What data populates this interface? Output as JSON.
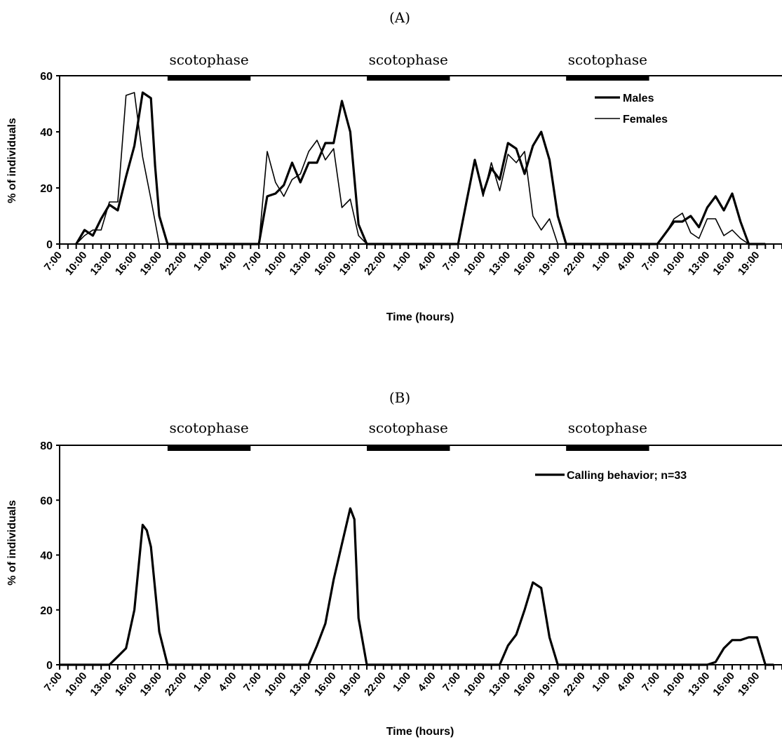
{
  "chart_data": [
    {
      "type": "line",
      "title": "(A)",
      "xlabel": "Time (hours)",
      "ylabel": "% of individuals",
      "ylim": [
        0,
        60
      ],
      "yticks": [
        0,
        20,
        40,
        60
      ],
      "x_tick_labels": [
        "7:00",
        "10:00",
        "13:00",
        "16:00",
        "19:00",
        "22:00",
        "1:00",
        "4:00",
        "7:00",
        "10:00",
        "13:00",
        "16:00",
        "19:00",
        "22:00",
        "1:00",
        "4:00",
        "7:00",
        "10:00",
        "13:00",
        "16:00",
        "19:00",
        "22:00",
        "1:00",
        "4:00",
        "7:00",
        "10:00",
        "13:00",
        "16:00",
        "19:00"
      ],
      "x_tick_hours": [
        0,
        3,
        6,
        9,
        12,
        15,
        18,
        21,
        24,
        27,
        30,
        33,
        36,
        39,
        42,
        45,
        48,
        51,
        54,
        57,
        60,
        63,
        66,
        69,
        72,
        75,
        78,
        81,
        84
      ],
      "x_range_hours": [
        0,
        87
      ],
      "scotophase_label": "scotophase",
      "scotophase_bars_hours": [
        [
          13,
          23
        ],
        [
          37,
          47
        ],
        [
          61,
          71
        ]
      ],
      "legend_position": "top-right",
      "series": [
        {
          "name": "Males",
          "stroke": "#000000",
          "weight": "bold",
          "x": [
            2,
            3,
            4,
            5,
            6,
            7,
            8,
            9,
            10,
            11,
            11.5,
            12,
            13,
            14,
            24,
            25,
            26,
            27,
            28,
            29,
            30,
            31,
            32,
            33,
            34,
            35,
            36,
            37,
            38,
            48,
            49,
            50,
            51,
            52,
            53,
            54,
            55,
            56,
            57,
            58,
            59,
            60,
            61,
            62,
            72,
            73,
            74,
            75,
            76,
            77,
            78,
            79,
            80,
            81,
            82,
            83,
            84,
            85
          ],
          "y": [
            0,
            5,
            3,
            9,
            14,
            12,
            24,
            35,
            54,
            52,
            28,
            10,
            0,
            0,
            0,
            17,
            18,
            21,
            29,
            22,
            29,
            29,
            36,
            36,
            51,
            40,
            7,
            0,
            0,
            0,
            15,
            30,
            18,
            27,
            23,
            36,
            34,
            25,
            35,
            40,
            30,
            10,
            0,
            0,
            0,
            4,
            8,
            8,
            10,
            6,
            13,
            17,
            12,
            18,
            8,
            0,
            0,
            0
          ]
        },
        {
          "name": "Females",
          "stroke": "#000000",
          "weight": "regular",
          "x": [
            2,
            3,
            4,
            5,
            6,
            7,
            8,
            9,
            10,
            11,
            12,
            13,
            14,
            24,
            25,
            26,
            27,
            28,
            29,
            30,
            31,
            32,
            33,
            34,
            35,
            36,
            37,
            38,
            48,
            49,
            50,
            51,
            52,
            53,
            54,
            55,
            56,
            57,
            58,
            59,
            60,
            61,
            62,
            72,
            73,
            74,
            75,
            76,
            77,
            78,
            79,
            80,
            81,
            82,
            83,
            84,
            85
          ],
          "y": [
            0,
            3,
            5,
            5,
            15,
            15,
            53,
            54,
            31,
            16,
            0,
            0,
            0,
            0,
            33,
            22,
            17,
            23,
            25,
            33,
            37,
            30,
            34,
            13,
            16,
            3,
            0,
            0,
            0,
            16,
            30,
            17,
            29,
            19,
            32,
            29,
            33,
            10,
            5,
            9,
            0,
            0,
            0,
            0,
            4,
            9,
            11,
            4,
            2,
            9,
            9,
            3,
            5,
            2,
            0,
            0,
            0
          ]
        }
      ]
    },
    {
      "type": "line",
      "title": "(B)",
      "xlabel": "Time (hours)",
      "ylabel": "% of individuals",
      "ylim": [
        0,
        80
      ],
      "yticks": [
        0,
        20,
        40,
        60,
        80
      ],
      "x_tick_labels": [
        "7:00",
        "10:00",
        "13:00",
        "16:00",
        "19:00",
        "22:00",
        "1:00",
        "4:00",
        "7:00",
        "10:00",
        "13:00",
        "16:00",
        "19:00",
        "22:00",
        "1:00",
        "4:00",
        "7:00",
        "10:00",
        "13:00",
        "16:00",
        "19:00",
        "22:00",
        "1:00",
        "4:00",
        "7:00",
        "10:00",
        "13:00",
        "16:00",
        "19:00"
      ],
      "x_tick_hours": [
        0,
        3,
        6,
        9,
        12,
        15,
        18,
        21,
        24,
        27,
        30,
        33,
        36,
        39,
        42,
        45,
        48,
        51,
        54,
        57,
        60,
        63,
        66,
        69,
        72,
        75,
        78,
        81,
        84
      ],
      "x_range_hours": [
        0,
        87
      ],
      "scotophase_label": "scotophase",
      "scotophase_bars_hours": [
        [
          13,
          23
        ],
        [
          37,
          47
        ],
        [
          61,
          71
        ]
      ],
      "legend_position": "top-right",
      "series": [
        {
          "name": "Calling behavior; n=33",
          "stroke": "#000000",
          "weight": "bold",
          "x": [
            0,
            6,
            7,
            8,
            9,
            10,
            10.5,
            11,
            12,
            13,
            24,
            30,
            31,
            32,
            33,
            34,
            35,
            35.5,
            36,
            37,
            38,
            48,
            53,
            54,
            55,
            56,
            57,
            58,
            59,
            60,
            61,
            62,
            72,
            78,
            79,
            80,
            81,
            82,
            83,
            84,
            85,
            86
          ],
          "y": [
            0,
            0,
            3,
            6,
            20,
            51,
            49,
            43,
            12,
            0,
            0,
            0,
            7,
            15,
            31,
            44,
            57,
            53,
            17,
            0,
            0,
            0,
            0,
            7,
            11,
            20,
            30,
            28,
            10,
            0,
            0,
            0,
            0,
            0,
            1,
            6,
            9,
            9,
            10,
            10,
            0,
            0
          ]
        }
      ]
    }
  ]
}
